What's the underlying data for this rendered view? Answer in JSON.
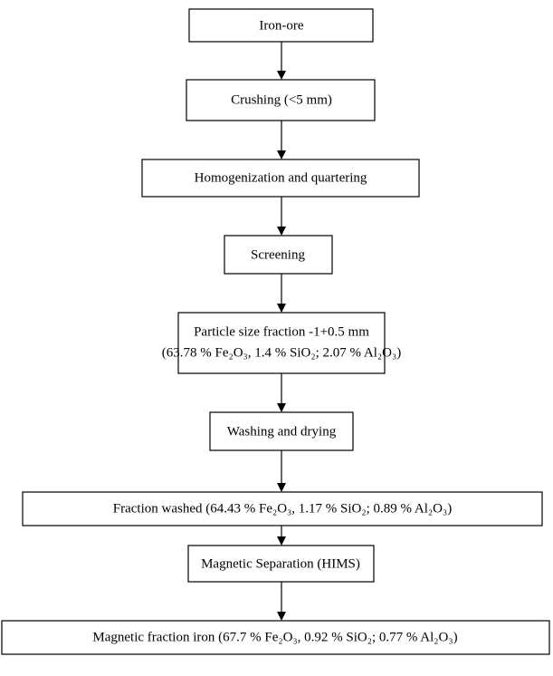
{
  "nodes": [
    {
      "label": "Iron-ore"
    },
    {
      "label": "Crushing (<5 mm)"
    },
    {
      "label": "Homogenization and quartering"
    },
    {
      "label": "Screening"
    },
    {
      "lines": [
        "Particle size fraction -1+0.5 mm",
        "(63.78 % Fe₂O₃, 1.4 % SiO₂; 2.07 % Al₂O₃)"
      ]
    },
    {
      "label": "Washing and drying"
    },
    {
      "label": "Fraction washed (64.43 % Fe₂O₃, 1.17 % SiO₂; 0.89 % Al₂O₃)"
    },
    {
      "label": "Magnetic Separation (HIMS)"
    },
    {
      "label": "Magnetic fraction iron (67.7 % Fe₂O₃, 0.92 % SiO₂; 0.77 % Al₂O₃)"
    }
  ]
}
